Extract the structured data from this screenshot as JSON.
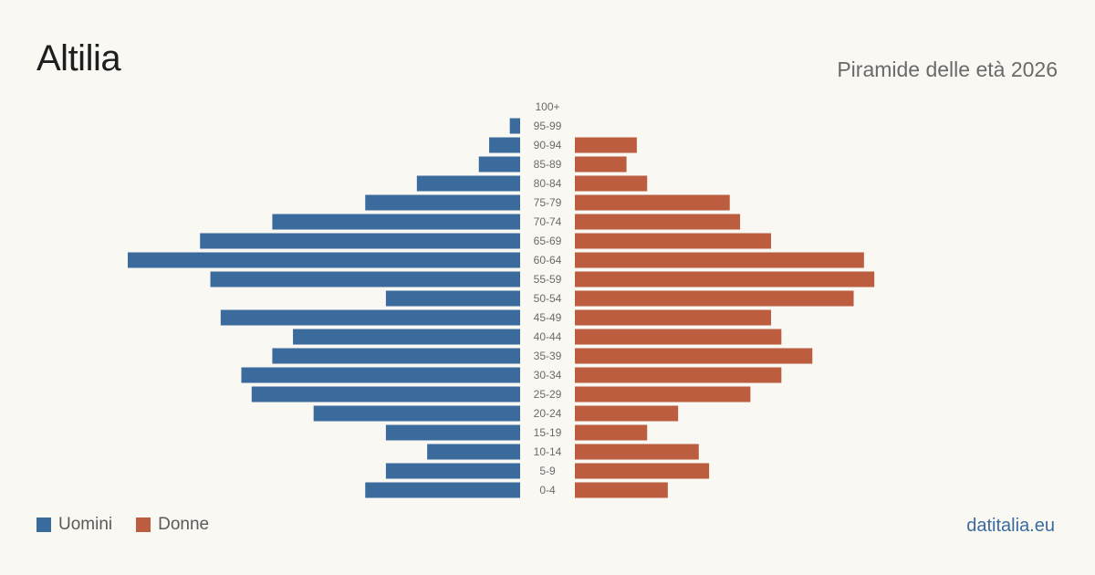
{
  "header": {
    "title": "Altilia",
    "subtitle": "Piramide delle età 2026"
  },
  "legend": {
    "men": "Uomini",
    "women": "Donne"
  },
  "brand": "datitalia.eu",
  "colors": {
    "men": "#3b6a9c",
    "women": "#bb5d3e",
    "background": "#faf8f3"
  },
  "chart_data": {
    "type": "bar",
    "orientation": "horizontal-pyramid",
    "categories": [
      "100+",
      "95-99",
      "90-94",
      "85-89",
      "80-84",
      "75-79",
      "70-74",
      "65-69",
      "60-64",
      "55-59",
      "50-54",
      "45-49",
      "40-44",
      "35-39",
      "30-34",
      "25-29",
      "20-24",
      "15-19",
      "10-14",
      "5-9",
      "0-4"
    ],
    "series": [
      {
        "name": "Uomini",
        "values": [
          0,
          1,
          3,
          4,
          10,
          15,
          24,
          31,
          38,
          30,
          13,
          29,
          22,
          24,
          27,
          26,
          20,
          13,
          9,
          13,
          15
        ]
      },
      {
        "name": "Donne",
        "values": [
          0,
          0,
          6,
          5,
          7,
          15,
          16,
          19,
          28,
          29,
          27,
          19,
          20,
          23,
          20,
          17,
          10,
          7,
          12,
          13,
          9
        ]
      }
    ],
    "xlim": [
      0,
      38
    ],
    "legend_position": "bottom-left",
    "grid": false
  }
}
